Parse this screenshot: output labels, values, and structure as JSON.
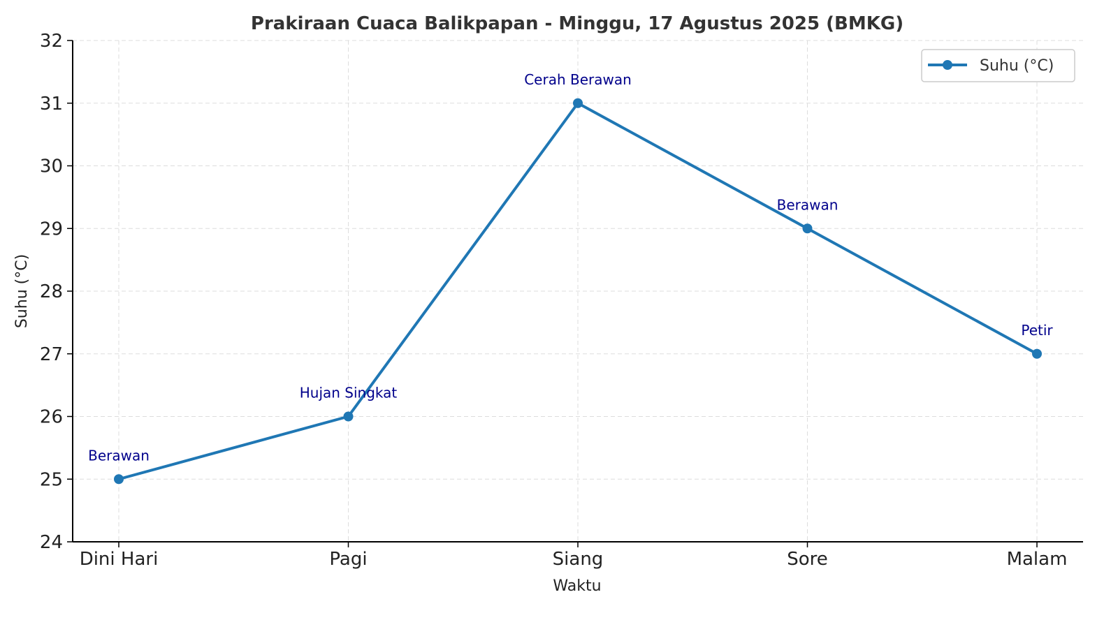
{
  "chart_data": {
    "type": "line",
    "title": "Prakiraan Cuaca Balikpapan - Minggu, 17 Agustus 2025 (BMKG)",
    "xlabel": "Waktu",
    "ylabel": "Suhu (°C)",
    "categories": [
      "Dini Hari",
      "Pagi",
      "Siang",
      "Sore",
      "Malam"
    ],
    "series": [
      {
        "name": "Suhu (°C)",
        "values": [
          25,
          26,
          31,
          29,
          27
        ]
      }
    ],
    "annotations": [
      "Berawan",
      "Hujan Singkat",
      "Cerah Berawan",
      "Berawan",
      "Petir"
    ],
    "ylim": [
      24,
      32
    ],
    "yticks": [
      24,
      25,
      26,
      27,
      28,
      29,
      30,
      31,
      32
    ],
    "grid": true,
    "legend_position": "top-right",
    "colors": {
      "line": "#1f77b4",
      "annotation": "#00008b",
      "axis": "#000000",
      "grid": "#dddddd"
    }
  }
}
